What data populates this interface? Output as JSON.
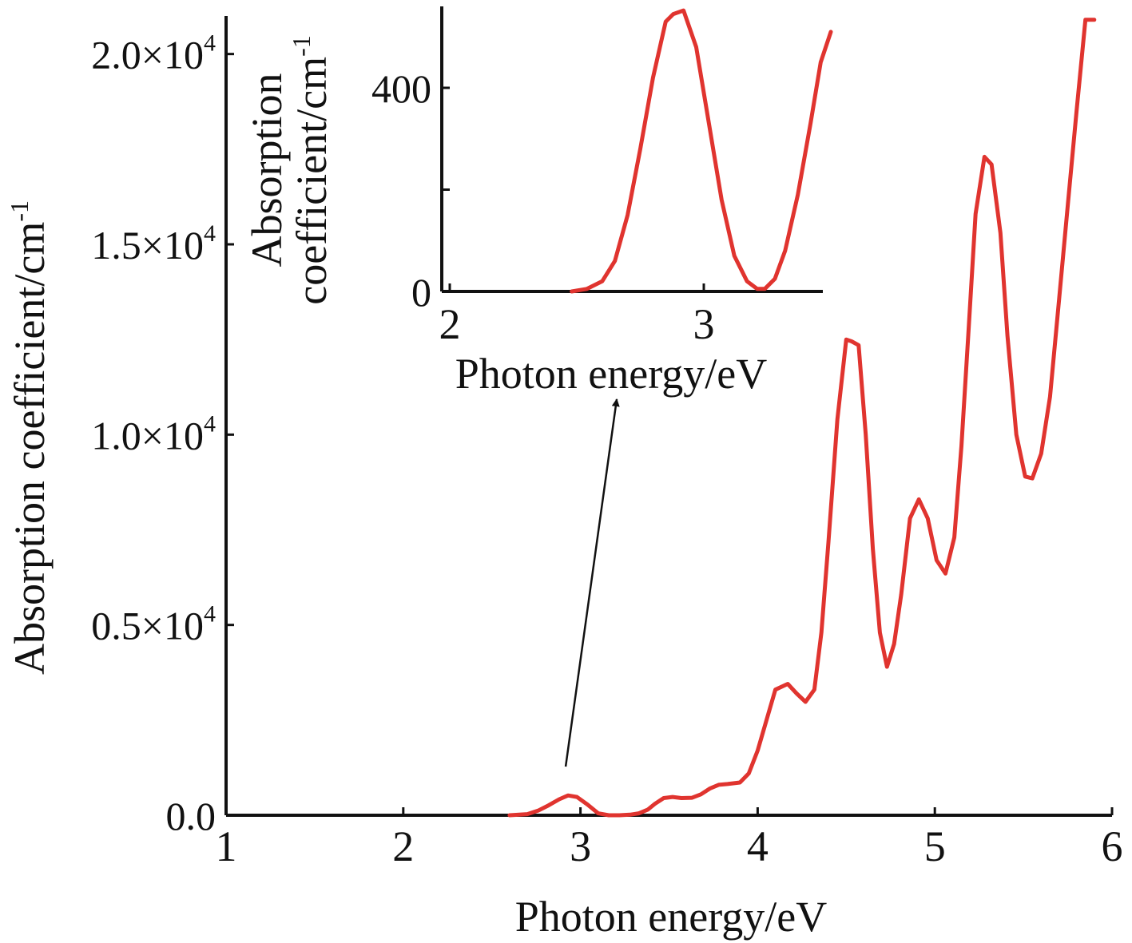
{
  "chart_data": [
    {
      "id": "main",
      "type": "line",
      "title": "",
      "xlabel": "Photon energy/eV",
      "ylabel_text": "Absorption coefficient/cm",
      "ylabel_sup": "-1",
      "xlim": [
        1,
        6
      ],
      "ylim": [
        0,
        21000
      ],
      "grid": false,
      "legend": "none",
      "x_ticks": [
        {
          "value": 1,
          "label": "1"
        },
        {
          "value": 2,
          "label": "2"
        },
        {
          "value": 3,
          "label": "3"
        },
        {
          "value": 4,
          "label": "4"
        },
        {
          "value": 5,
          "label": "5"
        },
        {
          "value": 6,
          "label": "6"
        }
      ],
      "y_ticks": [
        {
          "value": 0,
          "mantissa": "0.0",
          "exponent": ""
        },
        {
          "value": 5000,
          "mantissa": "0.5×10",
          "exponent": "4"
        },
        {
          "value": 10000,
          "mantissa": "1.0×10",
          "exponent": "4"
        },
        {
          "value": 15000,
          "mantissa": "1.5×10",
          "exponent": "4"
        },
        {
          "value": 20000,
          "mantissa": "2.0×10",
          "exponent": "4"
        }
      ],
      "series": [
        {
          "color": "#e0342f",
          "x": [
            2.6,
            2.7,
            2.76,
            2.82,
            2.88,
            2.93,
            2.98,
            3.04,
            3.1,
            3.16,
            3.22,
            3.28,
            3.33,
            3.38,
            3.42,
            3.47,
            3.52,
            3.57,
            3.63,
            3.68,
            3.73,
            3.78,
            3.83,
            3.9,
            3.95,
            4.0,
            4.05,
            4.1,
            4.17,
            4.22,
            4.27,
            4.32,
            4.36,
            4.4,
            4.45,
            4.5,
            4.53,
            4.57,
            4.61,
            4.65,
            4.69,
            4.73,
            4.77,
            4.81,
            4.86,
            4.91,
            4.96,
            5.01,
            5.06,
            5.11,
            5.15,
            5.19,
            5.23,
            5.28,
            5.32,
            5.37,
            5.41,
            5.46,
            5.51,
            5.55,
            5.6,
            5.65,
            5.7,
            5.75,
            5.8,
            5.85,
            5.9
          ],
          "y": [
            0,
            30,
            120,
            260,
            420,
            520,
            480,
            280,
            50,
            0,
            0,
            15,
            50,
            150,
            300,
            450,
            480,
            450,
            460,
            550,
            700,
            800,
            820,
            860,
            1100,
            1700,
            2500,
            3300,
            3450,
            3200,
            2980,
            3300,
            4800,
            7200,
            10400,
            12500,
            12450,
            12350,
            10000,
            7000,
            4800,
            3900,
            4500,
            5800,
            7800,
            8300,
            7800,
            6700,
            6350,
            7300,
            9700,
            12700,
            15800,
            17300,
            17100,
            15300,
            12600,
            10000,
            8900,
            8850,
            9500,
            11000,
            13500,
            16000,
            18500,
            20900,
            20900
          ]
        }
      ]
    },
    {
      "id": "inset",
      "type": "line",
      "title": "",
      "xlabel": "Photon energy/eV",
      "ylabel_line1": "Absorption",
      "ylabel_line2": "coefficient/cm",
      "ylabel_sup": "-1",
      "xlim": [
        2,
        3.5
      ],
      "ylim": [
        0,
        560
      ],
      "grid": false,
      "legend": "none",
      "x_ticks": [
        {
          "value": 2,
          "label": "2"
        },
        {
          "value": 3,
          "label": "3"
        }
      ],
      "y_ticks": [
        {
          "value": 0,
          "label": "0"
        },
        {
          "value": 200,
          "label": ""
        },
        {
          "value": 400,
          "label": "400"
        }
      ],
      "series": [
        {
          "color": "#e0342f",
          "x": [
            2.48,
            2.54,
            2.6,
            2.65,
            2.7,
            2.75,
            2.8,
            2.85,
            2.88,
            2.92,
            2.97,
            3.02,
            3.07,
            3.12,
            3.17,
            3.21,
            3.24,
            3.28,
            3.32,
            3.37,
            3.42,
            3.46,
            3.5
          ],
          "y": [
            0,
            5,
            20,
            60,
            150,
            280,
            420,
            530,
            545,
            552,
            480,
            330,
            180,
            70,
            20,
            5,
            5,
            25,
            80,
            190,
            330,
            450,
            510
          ]
        }
      ],
      "pointer_from": {
        "x": 2.93,
        "y": 650
      },
      "pointer_to_label": "xlabel"
    }
  ]
}
